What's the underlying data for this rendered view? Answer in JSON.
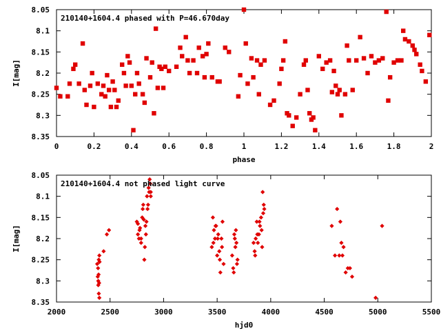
{
  "chart_data": [
    {
      "type": "scatter",
      "title": "210140+1604.4 phased with P=46.670day",
      "xlabel": "phase",
      "ylabel": "I[mag]",
      "xlim": [
        0,
        2
      ],
      "ylim": [
        8.05,
        8.35
      ],
      "y_inverted": true,
      "xticks": [
        "0",
        "0.2",
        "0.4",
        "0.6",
        "0.8",
        "1",
        "1.2",
        "1.4",
        "1.6",
        "1.8",
        "2"
      ],
      "yticks": [
        "8.05",
        "8.1",
        "8.15",
        "8.2",
        "8.25",
        "8.3",
        "8.35"
      ],
      "grid": false,
      "marker_color": "#e00000",
      "series": [
        {
          "x": [
            0.0,
            0.02,
            0.06,
            0.07,
            0.09,
            0.1,
            0.12,
            0.14,
            0.15,
            0.16,
            0.18,
            0.19,
            0.2,
            0.22,
            0.24,
            0.25,
            0.26,
            0.27,
            0.28,
            0.29,
            0.3,
            0.31,
            0.32,
            0.33,
            0.35,
            0.36,
            0.37,
            0.38,
            0.39,
            0.4,
            0.41,
            0.42,
            0.43,
            0.44,
            0.46,
            0.47,
            0.48,
            0.5,
            0.51,
            0.52,
            0.53,
            0.54,
            0.55,
            0.56,
            0.57,
            0.58,
            0.6,
            0.64,
            0.66,
            0.67,
            0.69,
            0.7,
            0.71,
            0.73,
            0.75,
            0.76,
            0.78,
            0.79,
            0.8,
            0.81,
            0.83,
            0.86,
            0.87,
            0.9,
            0.92,
            0.97,
            0.98,
            1.0,
            1.01,
            1.02,
            1.04,
            1.05,
            1.07,
            1.08,
            1.09,
            1.11,
            1.14,
            1.16,
            1.19,
            1.2,
            1.21,
            1.22,
            1.23,
            1.24,
            1.26,
            1.28,
            1.3,
            1.32,
            1.33,
            1.34,
            1.35,
            1.36,
            1.37,
            1.38,
            1.4,
            1.42,
            1.44,
            1.46,
            1.47,
            1.48,
            1.49,
            1.5,
            1.51,
            1.52,
            1.54,
            1.55,
            1.56,
            1.58,
            1.6,
            1.62,
            1.64,
            1.66,
            1.68,
            1.7,
            1.72,
            1.74,
            1.76,
            1.77,
            1.78,
            1.8,
            1.82,
            1.84,
            1.85,
            1.86,
            1.88,
            1.9,
            1.91,
            1.92,
            1.94,
            1.95,
            1.97,
            1.99
          ],
          "y": [
            8.235,
            8.255,
            8.255,
            8.225,
            8.19,
            8.18,
            8.225,
            8.13,
            8.24,
            8.275,
            8.23,
            8.2,
            8.28,
            8.225,
            8.25,
            8.23,
            8.255,
            8.205,
            8.24,
            8.28,
            8.22,
            8.24,
            8.28,
            8.265,
            8.18,
            8.2,
            8.23,
            8.16,
            8.175,
            8.23,
            8.335,
            8.25,
            8.2,
            8.225,
            8.25,
            8.27,
            8.165,
            8.21,
            8.175,
            8.295,
            8.095,
            8.235,
            8.185,
            8.19,
            8.235,
            8.185,
            8.195,
            8.185,
            8.14,
            8.16,
            8.115,
            8.17,
            8.2,
            8.17,
            8.2,
            8.14,
            8.16,
            8.21,
            8.155,
            8.13,
            8.21,
            8.22,
            8.22,
            8.14,
            8.15,
            8.255,
            8.205,
            8.05,
            8.13,
            8.225,
            8.165,
            8.21,
            8.17,
            8.25,
            8.18,
            8.17,
            8.275,
            8.265,
            8.225,
            8.19,
            8.17,
            8.125,
            8.295,
            8.3,
            8.325,
            8.305,
            8.25,
            8.18,
            8.17,
            8.24,
            8.295,
            8.31,
            8.305,
            8.335,
            8.16,
            8.19,
            8.175,
            8.17,
            8.245,
            8.195,
            8.23,
            8.25,
            8.24,
            8.3,
            8.25,
            8.135,
            8.17,
            8.24,
            8.17,
            8.115,
            8.165,
            8.2,
            8.16,
            8.175,
            8.17,
            8.165,
            8.055,
            8.265,
            8.21,
            8.175,
            8.17,
            8.17,
            8.1,
            8.12,
            8.125,
            8.135,
            8.145,
            8.155,
            8.18,
            8.195,
            8.22,
            8.11
          ]
        }
      ]
    },
    {
      "type": "scatter",
      "title": "210140+1604.4 not phased light curve",
      "xlabel": "hjd0",
      "ylabel": "I[mag]",
      "xlim": [
        2000,
        5500
      ],
      "ylim": [
        8.05,
        8.35
      ],
      "y_inverted": true,
      "xticks": [
        "2000",
        "2500",
        "3000",
        "3500",
        "4000",
        "4500",
        "5000",
        "5500"
      ],
      "yticks": [
        "8.05",
        "8.1",
        "8.15",
        "8.2",
        "8.25",
        "8.3",
        "8.35"
      ],
      "grid": false,
      "marker_color": "#e00000",
      "series": [
        {
          "x": [
            2380,
            2385,
            2390,
            2395,
            2400,
            2390,
            2395,
            2400,
            2388,
            2393,
            2398,
            2402,
            2440,
            2470,
            2490,
            2750,
            2760,
            2770,
            2780,
            2790,
            2800,
            2810,
            2820,
            2830,
            2840,
            2850,
            2860,
            2870,
            2880,
            2760,
            2775,
            2790,
            2805,
            2815,
            2825,
            2835,
            2845,
            2855,
            2865,
            2875,
            2880,
            3450,
            3460,
            3470,
            3480,
            3490,
            3500,
            3510,
            3520,
            3530,
            3540,
            3550,
            3560,
            3465,
            3485,
            3505,
            3525,
            3545,
            3640,
            3650,
            3660,
            3670,
            3680,
            3690,
            3655,
            3665,
            3675,
            3685,
            3840,
            3850,
            3860,
            3870,
            3880,
            3890,
            3900,
            3910,
            3920,
            3930,
            3940,
            3855,
            3875,
            3895,
            3915,
            3935,
            3925,
            4570,
            4600,
            4620,
            4640,
            4650,
            4660,
            4670,
            4680,
            4700,
            4720,
            4740,
            4760,
            4980,
            5040
          ],
          "y": [
            8.26,
            8.29,
            8.3,
            8.25,
            8.24,
            8.31,
            8.33,
            8.34,
            8.27,
            8.285,
            8.305,
            8.255,
            8.23,
            8.19,
            8.18,
            8.16,
            8.19,
            8.2,
            8.175,
            8.21,
            8.15,
            8.12,
            8.25,
            8.17,
            8.16,
            8.13,
            8.08,
            8.06,
            8.09,
            8.165,
            8.18,
            8.2,
            8.13,
            8.155,
            8.22,
            8.19,
            8.1,
            8.12,
            8.09,
            8.07,
            8.1,
            8.22,
            8.15,
            8.18,
            8.2,
            8.17,
            8.24,
            8.19,
            8.23,
            8.28,
            8.2,
            8.16,
            8.26,
            8.21,
            8.17,
            8.2,
            8.25,
            8.22,
            8.24,
            8.27,
            8.19,
            8.22,
            8.21,
            8.25,
            8.28,
            8.2,
            8.18,
            8.26,
            8.21,
            8.23,
            8.2,
            8.16,
            8.21,
            8.19,
            8.17,
            8.15,
            8.22,
            8.14,
            8.13,
            8.24,
            8.19,
            8.16,
            8.18,
            8.12,
            8.09,
            8.17,
            8.24,
            8.13,
            8.24,
            8.16,
            8.21,
            8.24,
            8.22,
            8.28,
            8.27,
            8.27,
            8.29,
            8.34,
            8.17
          ]
        }
      ]
    }
  ]
}
